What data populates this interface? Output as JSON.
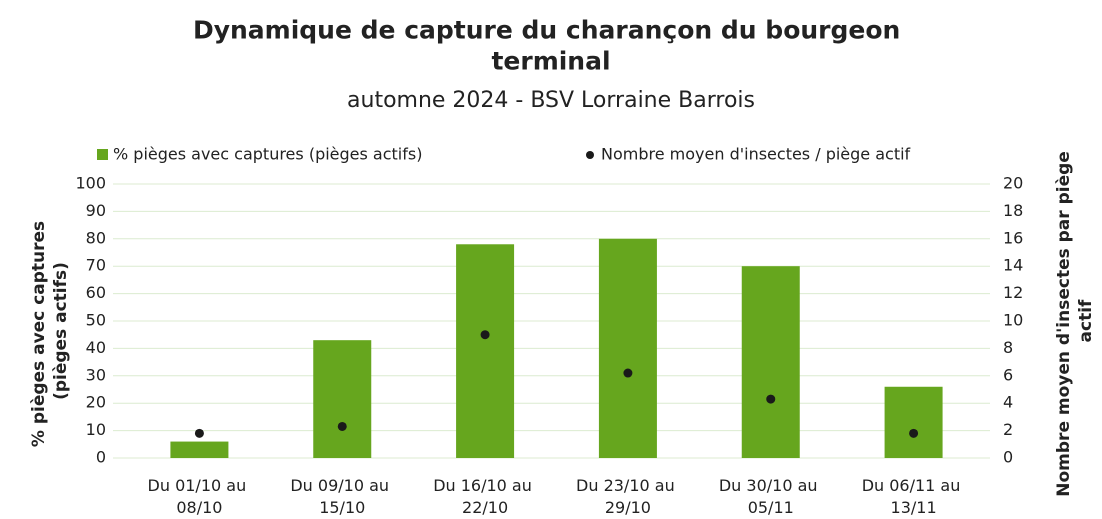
{
  "chart_data": {
    "type": "bar",
    "title": "Dynamique de capture du charançon du bourgeon terminal",
    "subtitle": "automne 2024 - BSV Lorraine Barrois",
    "categories": [
      "Du 01/10 au 08/10",
      "Du 09/10 au 15/10",
      "Du 16/10 au 22/10",
      "Du 23/10 au 29/10",
      "Du 30/10 au 05/11",
      "Du 06/11 au 13/11"
    ],
    "series": [
      {
        "name": "% pièges avec captures (pièges actifs)",
        "color": "#66a61e",
        "type": "bar",
        "values": [
          6,
          43,
          78,
          80,
          70,
          26
        ]
      },
      {
        "name": "Nombre moyen d'insectes / piège actif",
        "color": "#1a1a1a",
        "type": "scatter",
        "axis": "y2",
        "values": [
          1.8,
          2.3,
          9.0,
          6.2,
          4.3,
          1.8
        ]
      }
    ],
    "y_label": "% pièges avec captures (pièges actifs)",
    "y2_label": "Nombre moyen d'insectes par piège actif",
    "ylim": [
      0,
      100
    ],
    "yticks": [
      0,
      10,
      20,
      30,
      40,
      50,
      60,
      70,
      80,
      90,
      100
    ],
    "y2lim": [
      0,
      20
    ],
    "y2ticks": [
      0,
      2,
      4,
      6,
      8,
      10,
      12,
      14,
      16,
      18,
      20
    ],
    "grid": true,
    "legend": "top"
  }
}
